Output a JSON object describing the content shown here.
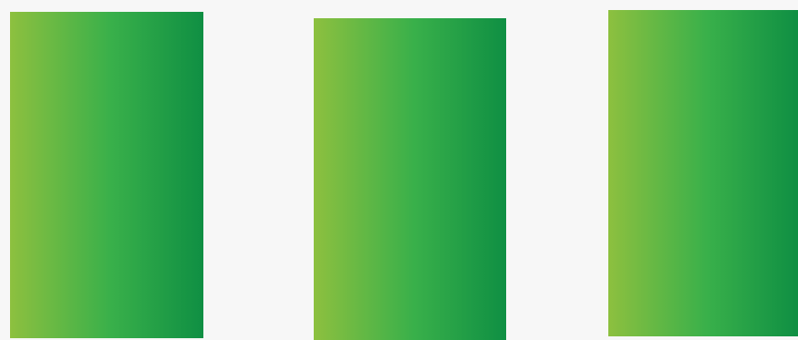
{
  "background": "#f7f7f7",
  "panels": [
    {
      "id": "panel-1",
      "gradient": [
        "#8dc03f",
        "#39b04a",
        "#0f8f43"
      ]
    },
    {
      "id": "panel-2",
      "gradient": [
        "#8dc03f",
        "#39b04a",
        "#0f8f43"
      ]
    },
    {
      "id": "panel-3",
      "gradient": [
        "#8dc03f",
        "#39b04a",
        "#0f8f43"
      ]
    }
  ]
}
